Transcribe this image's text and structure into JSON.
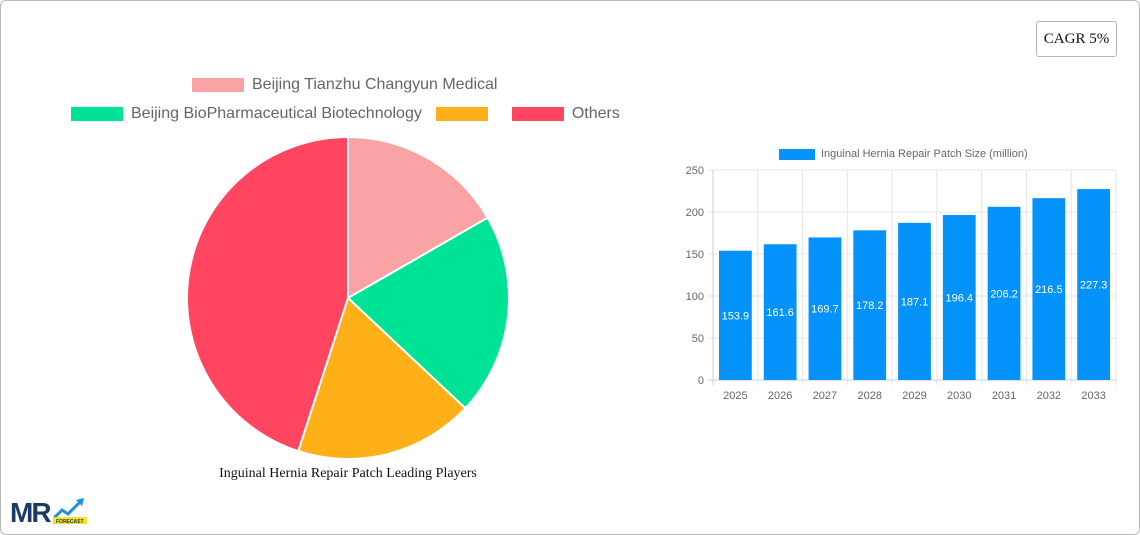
{
  "badge": {
    "cagr_label": "CAGR 5%"
  },
  "pie": {
    "title": "Inguinal Hernia Repair Patch Leading Players",
    "legend": [
      {
        "label": "Beijing Tianzhu Changyun Medical",
        "color": "#f9a3a4"
      },
      {
        "label": "Beijing BioPharmaceutical Biotechnology",
        "color": "#00e396"
      },
      {
        "label": "",
        "color": "#feb019"
      },
      {
        "label": "Others",
        "color": "#ff4560"
      }
    ]
  },
  "bar": {
    "legend_label": "Inguinal Hernia Repair Patch Size (million)",
    "color": "#0593fb"
  },
  "chart_data": [
    {
      "type": "pie",
      "title": "Inguinal Hernia Repair Patch Leading Players",
      "categories": [
        "Beijing Tianzhu Changyun Medical",
        "Beijing BioPharmaceutical Biotechnology",
        "",
        "Others"
      ],
      "values": [
        16.7,
        20.3,
        18.0,
        45.0
      ],
      "colors": [
        "#f9a3a4",
        "#00e396",
        "#feb019",
        "#ff4560"
      ],
      "legend_position": "top"
    },
    {
      "type": "bar",
      "title": "",
      "categories": [
        "2025",
        "2026",
        "2027",
        "2028",
        "2029",
        "2030",
        "2031",
        "2032",
        "2033"
      ],
      "series": [
        {
          "name": "Inguinal Hernia Repair Patch Size (million)",
          "values": [
            153.9,
            161.6,
            169.7,
            178.2,
            187.1,
            196.4,
            206.2,
            216.5,
            227.3
          ]
        }
      ],
      "xlabel": "",
      "ylabel": "",
      "ylim": [
        0,
        250
      ],
      "yticks": [
        0,
        50,
        100,
        150,
        200,
        250
      ],
      "grid": true,
      "legend_position": "top"
    }
  ],
  "logo": {
    "text": "MR",
    "sub": "FORECAST"
  }
}
